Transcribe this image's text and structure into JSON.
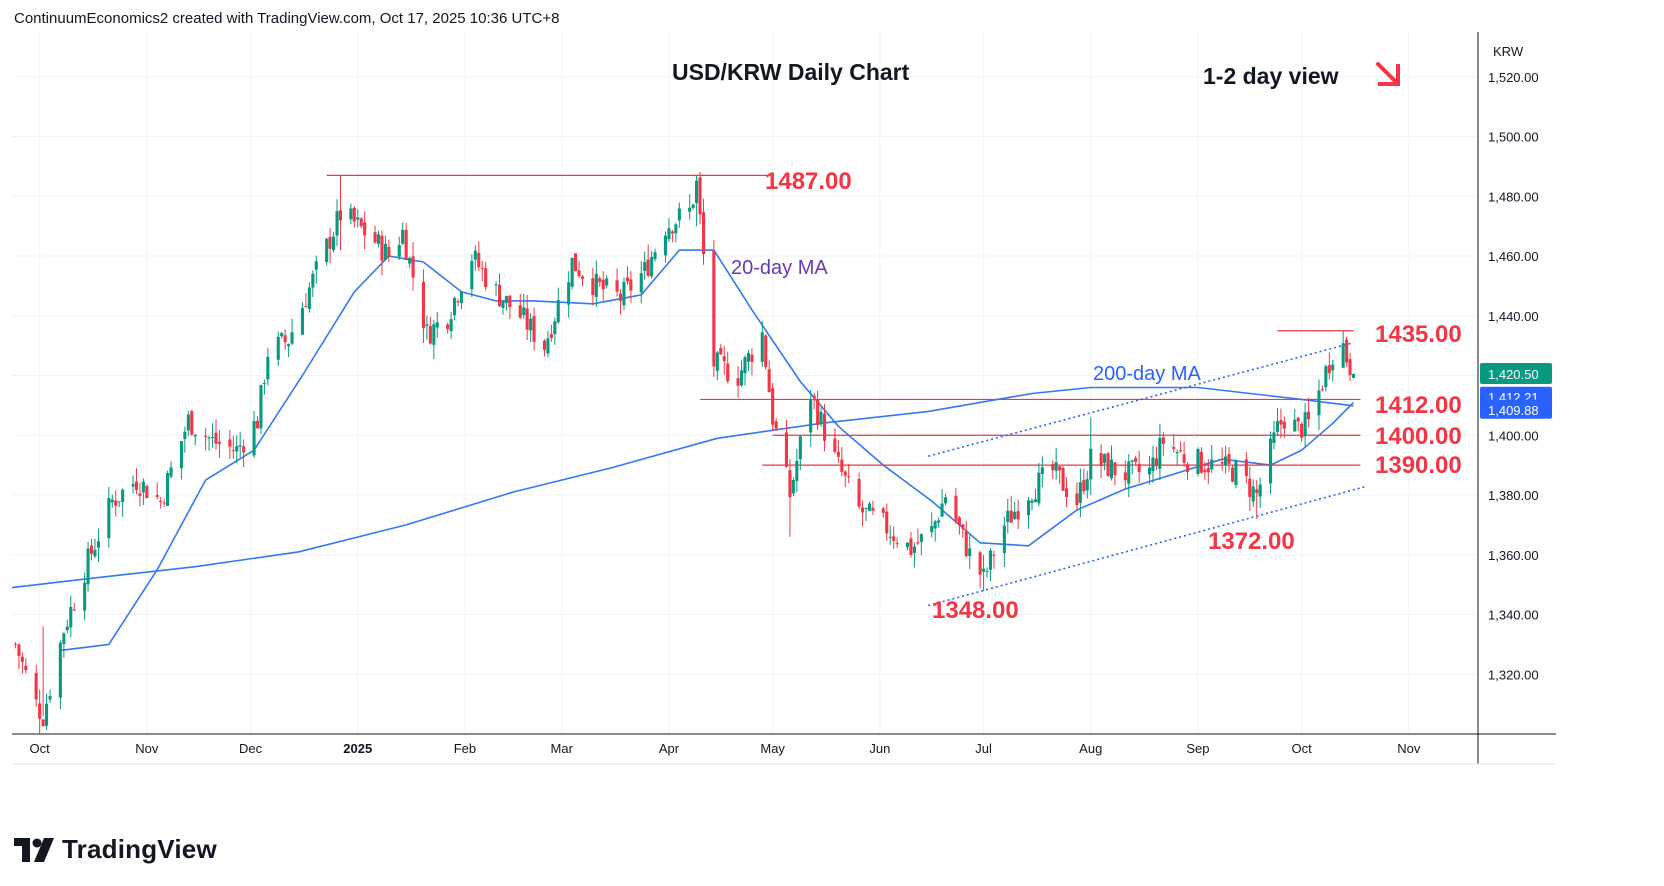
{
  "header": {
    "attribution": "ContinuumEconomics2 created with TradingView.com, Oct 17, 2025 10:36 UTC+8"
  },
  "brand": {
    "name": "TradingView"
  },
  "colors": {
    "up": "#089981",
    "down": "#f23645",
    "ma20": "#3179f5",
    "ma200": "#3179f5",
    "level_line": "#f23645",
    "channel": "#2962ff",
    "level_label": "#f23645",
    "ma20_label": "#673ab7",
    "ma200_label": "#2962ff",
    "grid": "#f0f3fa",
    "last_price_bg": "#089981",
    "ma_badge_bg": "#2962ff"
  },
  "chart_data": {
    "type": "candlestick",
    "title": "USD/KRW Daily Chart",
    "view_label": "1-2 day view",
    "view_arrow": "down-right-arrow-icon",
    "symbol": "KRW",
    "ylim": [
      1300,
      1535
    ],
    "grid": true,
    "y_ticks": [
      "1,320.00",
      "1,340.00",
      "1,360.00",
      "1,380.00",
      "1,400.00",
      "1,420.00",
      "1,440.00",
      "1,460.00",
      "1,480.00",
      "1,500.00",
      "1,520.00"
    ],
    "x_ticks": [
      {
        "label": "Oct",
        "date": "2024-10-01"
      },
      {
        "label": "Nov",
        "date": "2024-11-01"
      },
      {
        "label": "Dec",
        "date": "2024-12-01"
      },
      {
        "label": "2025",
        "date": "2025-01-01",
        "bold": true
      },
      {
        "label": "Feb",
        "date": "2025-02-01"
      },
      {
        "label": "Mar",
        "date": "2025-03-01"
      },
      {
        "label": "Apr",
        "date": "2025-04-01"
      },
      {
        "label": "May",
        "date": "2025-05-01"
      },
      {
        "label": "Jun",
        "date": "2025-06-01"
      },
      {
        "label": "Jul",
        "date": "2025-07-01"
      },
      {
        "label": "Aug",
        "date": "2025-08-01"
      },
      {
        "label": "Sep",
        "date": "2025-09-01"
      },
      {
        "label": "Oct",
        "date": "2025-10-01"
      },
      {
        "label": "Nov",
        "date": "2025-11-01"
      }
    ],
    "price_path": [
      [
        "2024-09-24",
        1330
      ],
      [
        "2024-09-30",
        1310
      ],
      [
        "2024-10-02",
        1306
      ],
      [
        "2024-10-08",
        1335
      ],
      [
        "2024-10-15",
        1358
      ],
      [
        "2024-10-22",
        1378
      ],
      [
        "2024-10-29",
        1385
      ],
      [
        "2024-11-05",
        1378
      ],
      [
        "2024-11-13",
        1405
      ],
      [
        "2024-11-20",
        1398
      ],
      [
        "2024-11-27",
        1395
      ],
      [
        "2024-12-03",
        1405
      ],
      [
        "2024-12-06",
        1428
      ],
      [
        "2024-12-12",
        1432
      ],
      [
        "2024-12-19",
        1452
      ],
      [
        "2024-12-27",
        1474
      ],
      [
        "2024-12-31",
        1471
      ],
      [
        "2025-01-06",
        1465
      ],
      [
        "2025-01-10",
        1460
      ],
      [
        "2025-01-14",
        1468
      ],
      [
        "2025-01-21",
        1434
      ],
      [
        "2025-01-27",
        1440
      ],
      [
        "2025-02-03",
        1460
      ],
      [
        "2025-02-10",
        1448
      ],
      [
        "2025-02-17",
        1440
      ],
      [
        "2025-02-24",
        1430
      ],
      [
        "2025-03-04",
        1458
      ],
      [
        "2025-03-11",
        1450
      ],
      [
        "2025-03-18",
        1446
      ],
      [
        "2025-03-25",
        1455
      ],
      [
        "2025-03-31",
        1470
      ],
      [
        "2025-04-07",
        1475
      ],
      [
        "2025-04-09",
        1484
      ],
      [
        "2025-04-14",
        1424
      ],
      [
        "2025-04-21",
        1420
      ],
      [
        "2025-04-28",
        1434
      ],
      [
        "2025-05-01",
        1406
      ],
      [
        "2025-05-06",
        1380
      ],
      [
        "2025-05-12",
        1414
      ],
      [
        "2025-05-19",
        1392
      ],
      [
        "2025-05-26",
        1375
      ],
      [
        "2025-06-02",
        1370
      ],
      [
        "2025-06-10",
        1362
      ],
      [
        "2025-06-16",
        1368
      ],
      [
        "2025-06-20",
        1380
      ],
      [
        "2025-06-27",
        1360
      ],
      [
        "2025-07-01",
        1352
      ],
      [
        "2025-07-07",
        1370
      ],
      [
        "2025-07-14",
        1381
      ],
      [
        "2025-07-21",
        1388
      ],
      [
        "2025-07-28",
        1378
      ],
      [
        "2025-08-01",
        1392
      ],
      [
        "2025-08-11",
        1387
      ],
      [
        "2025-08-18",
        1388
      ],
      [
        "2025-08-22",
        1398
      ],
      [
        "2025-08-29",
        1392
      ],
      [
        "2025-09-05",
        1390
      ],
      [
        "2025-09-12",
        1388
      ],
      [
        "2025-09-18",
        1380
      ],
      [
        "2025-09-24",
        1402
      ],
      [
        "2025-09-26",
        1406
      ],
      [
        "2025-09-30",
        1402
      ],
      [
        "2025-10-03",
        1404
      ],
      [
        "2025-10-07",
        1418
      ],
      [
        "2025-10-10",
        1428
      ],
      [
        "2025-10-13",
        1430
      ],
      [
        "2025-10-14",
        1426
      ],
      [
        "2025-10-16",
        1420.5
      ]
    ],
    "pivots": [
      {
        "date": "2024-10-02",
        "high": 1336,
        "low": 1306
      },
      {
        "date": "2024-12-27",
        "high": 1487,
        "low": 1462
      },
      {
        "date": "2025-04-09",
        "high": 1487,
        "low": 1470
      },
      {
        "date": "2025-05-06",
        "high": 1392,
        "low": 1366
      },
      {
        "date": "2025-07-01",
        "high": 1360,
        "low": 1348
      },
      {
        "date": "2025-08-01",
        "high": 1406,
        "low": 1380
      },
      {
        "date": "2025-09-18",
        "high": 1385,
        "low": 1372
      },
      {
        "date": "2025-10-13",
        "high": 1435,
        "low": 1424
      }
    ],
    "ma20_path": [
      [
        "2024-10-07",
        1328
      ],
      [
        "2024-10-21",
        1330
      ],
      [
        "2024-11-04",
        1355
      ],
      [
        "2024-11-18",
        1385
      ],
      [
        "2024-12-02",
        1395
      ],
      [
        "2024-12-16",
        1420
      ],
      [
        "2024-12-31",
        1448
      ],
      [
        "2025-01-10",
        1460
      ],
      [
        "2025-01-20",
        1458
      ],
      [
        "2025-01-31",
        1448
      ],
      [
        "2025-02-10",
        1445
      ],
      [
        "2025-02-21",
        1445
      ],
      [
        "2025-03-10",
        1444
      ],
      [
        "2025-03-24",
        1447
      ],
      [
        "2025-04-04",
        1462
      ],
      [
        "2025-04-14",
        1462
      ],
      [
        "2025-04-25",
        1442
      ],
      [
        "2025-05-09",
        1418
      ],
      [
        "2025-05-20",
        1403
      ],
      [
        "2025-06-02",
        1390
      ],
      [
        "2025-06-16",
        1378
      ],
      [
        "2025-06-30",
        1364
      ],
      [
        "2025-07-14",
        1363
      ],
      [
        "2025-07-28",
        1375
      ],
      [
        "2025-08-11",
        1382
      ],
      [
        "2025-08-25",
        1387
      ],
      [
        "2025-09-08",
        1392
      ],
      [
        "2025-09-22",
        1390
      ],
      [
        "2025-10-01",
        1395
      ],
      [
        "2025-10-10",
        1404
      ],
      [
        "2025-10-16",
        1411
      ]
    ],
    "ma200_path": [
      [
        "2024-09-23",
        1349
      ],
      [
        "2024-10-15",
        1352
      ],
      [
        "2024-11-15",
        1356
      ],
      [
        "2024-12-15",
        1361
      ],
      [
        "2025-01-15",
        1370
      ],
      [
        "2025-02-15",
        1381
      ],
      [
        "2025-03-15",
        1389
      ],
      [
        "2025-04-15",
        1399
      ],
      [
        "2025-05-15",
        1404
      ],
      [
        "2025-06-15",
        1408
      ],
      [
        "2025-07-15",
        1414
      ],
      [
        "2025-08-01",
        1416
      ],
      [
        "2025-09-01",
        1416
      ],
      [
        "2025-10-01",
        1412
      ],
      [
        "2025-10-16",
        1409.88
      ]
    ],
    "horizontal_levels": [
      {
        "value": 1487.0,
        "label": "1487.00",
        "from": "2024-12-23",
        "to": "2025-04-30"
      },
      {
        "value": 1435.0,
        "label": "1435.00",
        "from": "2025-09-24",
        "to": "2025-10-16"
      },
      {
        "value": 1412.0,
        "label": "1412.00",
        "from": "2025-04-10",
        "to": "2025-10-18"
      },
      {
        "value": 1400.0,
        "label": "1400.00",
        "from": "2025-05-01",
        "to": "2025-10-18"
      },
      {
        "value": 1390.0,
        "label": "1390.00",
        "from": "2025-04-28",
        "to": "2025-10-18"
      }
    ],
    "point_labels": [
      {
        "value": 1348.0,
        "label": "1348.00",
        "date": "2025-07-01"
      },
      {
        "value": 1372.0,
        "label": "1372.00",
        "date": "2025-09-18"
      }
    ],
    "channel_lines": [
      {
        "from": [
          "2025-06-15",
          1393
        ],
        "to": [
          "2025-10-16",
          1431
        ]
      },
      {
        "from": [
          "2025-06-15",
          1343
        ],
        "to": [
          "2025-10-20",
          1383
        ]
      }
    ],
    "annotations": {
      "ma20_label": "20-day MA",
      "ma200_label": "200-day MA"
    },
    "last_price": {
      "value": 1420.5,
      "label": "1,420.50"
    },
    "ma_badges": [
      {
        "value": 1412.21,
        "label": "1,412.21"
      },
      {
        "value": 1409.88,
        "label": "1,409.88"
      }
    ]
  }
}
